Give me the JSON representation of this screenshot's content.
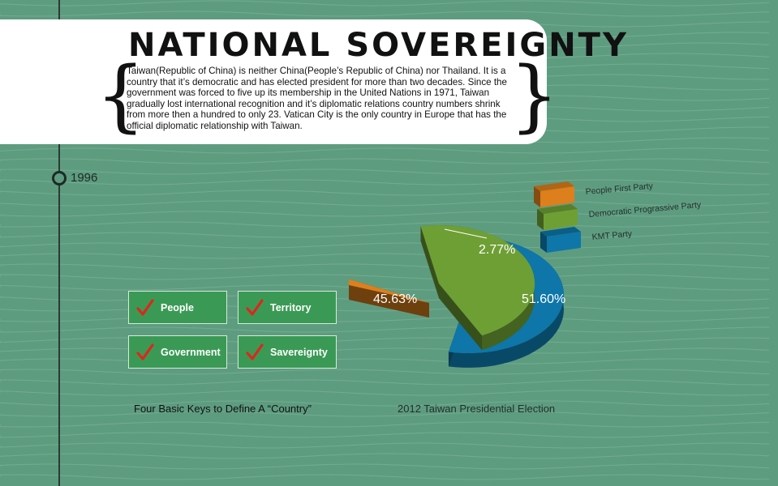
{
  "header": {
    "title": "NATIONAL SOVEREIGNTY",
    "intro": "Taiwan(Republic of China) is neither China(People’s Republic of China) nor Thailand. It is a country that it’s democratic and has elected president for more than two decades. Since the government was forced to five up its membership in the United Nations in 1971, Taiwan gradually lost international recognition and it’s diplomatic relations country numbers shrink from more then a hundred to only 23. Vatican City is the only country in Europe that has the official diplomatic relationship with Taiwan."
  },
  "timeline": {
    "year": "1996"
  },
  "keys": {
    "items": [
      {
        "label": "People",
        "icon": "checkmark-icon"
      },
      {
        "label": "Territory",
        "icon": "checkmark-icon"
      },
      {
        "label": "Government",
        "icon": "checkmark-icon"
      },
      {
        "label": "Savereignty",
        "icon": "checkmark-icon"
      }
    ],
    "caption": "Four Basic Keys to Define A “Country”"
  },
  "chart_data": {
    "type": "pie",
    "title": "2012 Taiwan Presidential Election",
    "slices": [
      {
        "label": "KMT Party",
        "value": 51.6,
        "value_label": "51.60%",
        "color": "#0e76a8"
      },
      {
        "label": "Democratic Prograssive Party",
        "value": 45.63,
        "value_label": "45.63%",
        "color": "#6e9f34"
      },
      {
        "label": "People First Party",
        "value": 2.77,
        "value_label": "2.77%",
        "color": "#dc7f1c"
      }
    ],
    "legend_placement": "top-right"
  }
}
